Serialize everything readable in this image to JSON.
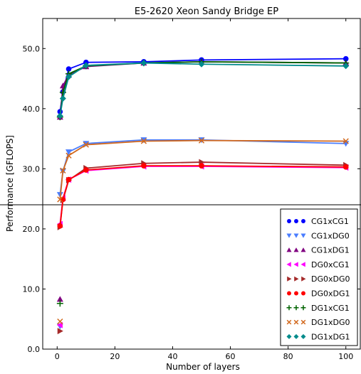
{
  "chart_data": {
    "type": "line",
    "title": "E5-2620 Xeon Sandy Bridge EP",
    "xlabel": "Number of layers",
    "ylabel": "Performance [GFLOPS]",
    "xlim": [
      -5,
      105
    ],
    "ylim": [
      0,
      55
    ],
    "xticks": [
      "0",
      "20",
      "40",
      "60",
      "80",
      "100"
    ],
    "yticks": [
      "0.0",
      "10.0",
      "20.0",
      "30.0",
      "40.0",
      "50.0"
    ],
    "legend_position": "lower-right",
    "grid": false,
    "x": [
      1,
      2,
      4,
      10,
      30,
      50,
      100
    ],
    "series": [
      {
        "name": "CG1xCG1",
        "color": "#0000ff",
        "marker": "circle",
        "values": [
          39.5,
          42.8,
          46.6,
          47.7,
          47.8,
          48.1,
          48.3
        ],
        "outlier": null
      },
      {
        "name": "CG1xDG0",
        "color": "#4a7dff",
        "marker": "triangle-down",
        "values": [
          25.7,
          29.6,
          32.8,
          34.2,
          34.8,
          34.8,
          34.2
        ],
        "outlier": 3.8
      },
      {
        "name": "CG1xDG1",
        "color": "#800080",
        "marker": "triangle-up",
        "values": [
          38.6,
          43.8,
          45.6,
          47.0,
          47.6,
          47.8,
          47.6
        ],
        "outlier": 8.3
      },
      {
        "name": "DG0xCG1",
        "color": "#ff00ff",
        "marker": "triangle-left",
        "values": [
          20.8,
          25.1,
          28.2,
          29.7,
          30.4,
          30.4,
          30.2
        ],
        "outlier": 4.0
      },
      {
        "name": "DG0xDG0",
        "color": "#a52a2a",
        "marker": "triangle-right",
        "values": [
          20.3,
          24.8,
          28.1,
          30.1,
          30.9,
          31.1,
          30.6
        ],
        "outlier": 3.0
      },
      {
        "name": "DG0xDG1",
        "color": "#ff0000",
        "marker": "circle",
        "values": [
          20.5,
          24.9,
          28.2,
          29.8,
          30.5,
          30.5,
          30.3
        ],
        "outlier": null
      },
      {
        "name": "DG1xCG1",
        "color": "#006400",
        "marker": "plus",
        "values": [
          38.6,
          42.7,
          45.8,
          47.1,
          47.6,
          47.8,
          47.6
        ],
        "outlier": 7.6
      },
      {
        "name": "DG1xDG0",
        "color": "#d2691e",
        "marker": "x",
        "values": [
          24.9,
          29.7,
          32.2,
          34.0,
          34.6,
          34.7,
          34.6
        ],
        "outlier": 4.6
      },
      {
        "name": "DG1xDG1",
        "color": "#008b8b",
        "marker": "diamond",
        "values": [
          38.8,
          41.7,
          45.3,
          47.2,
          47.6,
          47.4,
          47.1
        ],
        "outlier": null
      }
    ]
  }
}
